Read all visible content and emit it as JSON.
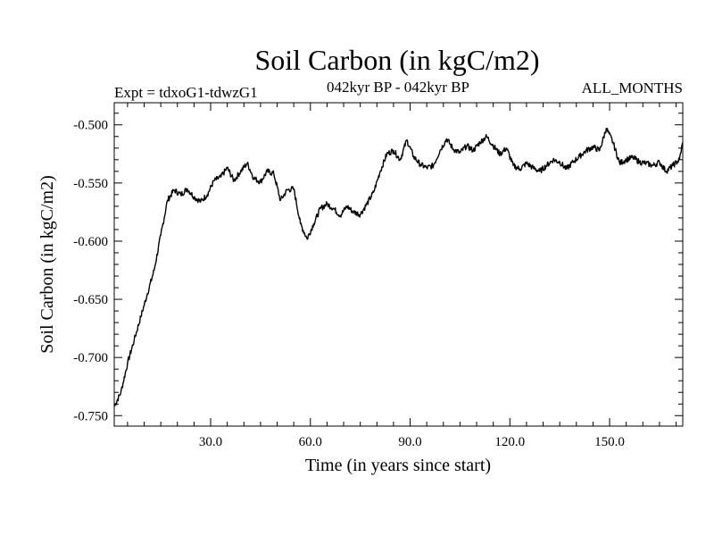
{
  "chart_data": {
    "type": "line",
    "title": "Soil Carbon (in kgC/m2)",
    "subtitle_left": "Expt = tdxoG1-tdwzG1",
    "subtitle_center": "042kyr BP - 042kyr BP",
    "subtitle_right": "ALL_MONTHS",
    "xlabel": "Time (in years since start)",
    "ylabel": "Soil Carbon (in kgC/m2)",
    "xlim": [
      1,
      172
    ],
    "ylim": [
      -0.759,
      -0.481
    ],
    "xticks": [
      30,
      60,
      90,
      120,
      150
    ],
    "xtick_labels": [
      "30.0",
      "60.0",
      "90.0",
      "120.0",
      "150.0"
    ],
    "yticks": [
      -0.75,
      -0.7,
      -0.65,
      -0.6,
      -0.55,
      -0.5
    ],
    "ytick_labels": [
      "-0.750",
      "-0.700",
      "-0.650",
      "-0.600",
      "-0.550",
      "-0.500"
    ],
    "series": [
      {
        "name": "Soil Carbon",
        "x": [
          1,
          3,
          5,
          7,
          9,
          11,
          13,
          15,
          17,
          19,
          21,
          23,
          25,
          27,
          29,
          31,
          33,
          35,
          37,
          39,
          41,
          43,
          45,
          47,
          49,
          51,
          53,
          55,
          57,
          59,
          61,
          63,
          65,
          67,
          69,
          71,
          73,
          75,
          77,
          79,
          81,
          83,
          85,
          87,
          89,
          91,
          93,
          95,
          97,
          99,
          101,
          103,
          105,
          107,
          109,
          111,
          113,
          115,
          117,
          119,
          121,
          123,
          125,
          127,
          129,
          131,
          133,
          135,
          137,
          139,
          141,
          143,
          145,
          147,
          149,
          151,
          153,
          155,
          157,
          159,
          161,
          163,
          165,
          167,
          169,
          171,
          172
        ],
        "values": [
          -0.742,
          -0.73,
          -0.705,
          -0.685,
          -0.665,
          -0.645,
          -0.625,
          -0.595,
          -0.565,
          -0.556,
          -0.56,
          -0.555,
          -0.562,
          -0.566,
          -0.56,
          -0.548,
          -0.545,
          -0.537,
          -0.548,
          -0.54,
          -0.533,
          -0.546,
          -0.549,
          -0.54,
          -0.542,
          -0.565,
          -0.556,
          -0.555,
          -0.585,
          -0.598,
          -0.585,
          -0.572,
          -0.568,
          -0.572,
          -0.578,
          -0.57,
          -0.575,
          -0.577,
          -0.568,
          -0.558,
          -0.54,
          -0.525,
          -0.522,
          -0.53,
          -0.513,
          -0.527,
          -0.534,
          -0.537,
          -0.535,
          -0.522,
          -0.512,
          -0.521,
          -0.524,
          -0.518,
          -0.522,
          -0.515,
          -0.51,
          -0.518,
          -0.525,
          -0.52,
          -0.535,
          -0.538,
          -0.533,
          -0.537,
          -0.54,
          -0.535,
          -0.53,
          -0.532,
          -0.538,
          -0.532,
          -0.527,
          -0.522,
          -0.519,
          -0.522,
          -0.503,
          -0.515,
          -0.533,
          -0.53,
          -0.528,
          -0.532,
          -0.533,
          -0.535,
          -0.532,
          -0.54,
          -0.535,
          -0.53,
          -0.515
        ]
      }
    ]
  }
}
